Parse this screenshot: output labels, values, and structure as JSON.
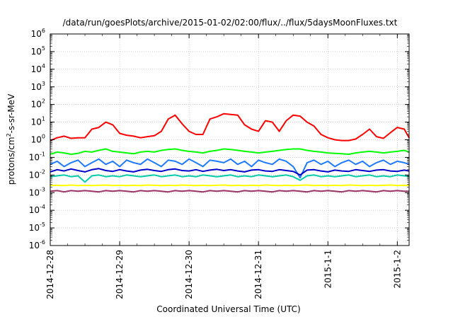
{
  "chart_data": {
    "type": "line",
    "title": "/data/run/goesPlots/archive/2015-01-02/02:00/flux/../flux/5daysMoonFluxes.txt",
    "xlabel": "Coordinated Universal Time (UTC)",
    "ylabel_main": "protons/cm",
    "ylabel_exp": "2",
    "ylabel_rest": "-s-sr-MeV",
    "yscale": "log",
    "ylim": [
      1e-06,
      1000000.0
    ],
    "yticks": [
      {
        "base": "10",
        "exp": "6"
      },
      {
        "base": "10",
        "exp": "5"
      },
      {
        "base": "10",
        "exp": "4"
      },
      {
        "base": "10",
        "exp": "3"
      },
      {
        "base": "10",
        "exp": "2"
      },
      {
        "base": "10",
        "exp": "1"
      },
      {
        "base": "10",
        "exp": "0"
      },
      {
        "base": "10",
        "exp": "-1"
      },
      {
        "base": "10",
        "exp": "-2"
      },
      {
        "base": "10",
        "exp": "-3"
      },
      {
        "base": "10",
        "exp": "-4"
      },
      {
        "base": "10",
        "exp": "-5"
      },
      {
        "base": "10",
        "exp": "-6"
      }
    ],
    "xlim_days": [
      0,
      5.17
    ],
    "xticks": [
      {
        "label": "2014-12-28",
        "day": 0
      },
      {
        "label": "2014-12-29",
        "day": 1
      },
      {
        "label": "2014-12-30",
        "day": 2
      },
      {
        "label": "2014-12-31",
        "day": 3
      },
      {
        "label": "2015-1-1",
        "day": 4
      },
      {
        "label": "2015-1-2",
        "day": 5
      }
    ],
    "grid": true,
    "series": [
      {
        "color": "#ff0000",
        "x": [
          0,
          0.1,
          0.2,
          0.3,
          0.4,
          0.5,
          0.6,
          0.7,
          0.8,
          0.9,
          1.0,
          1.1,
          1.2,
          1.3,
          1.4,
          1.5,
          1.6,
          1.7,
          1.8,
          1.9,
          2.0,
          2.1,
          2.2,
          2.3,
          2.4,
          2.5,
          2.6,
          2.7,
          2.8,
          2.9,
          3.0,
          3.1,
          3.2,
          3.3,
          3.4,
          3.5,
          3.6,
          3.7,
          3.8,
          3.9,
          4.0,
          4.1,
          4.2,
          4.3,
          4.4,
          4.5,
          4.6,
          4.7,
          4.8,
          4.9,
          5.0,
          5.1,
          5.17
        ],
        "y": [
          0.9,
          1.3,
          1.6,
          1.2,
          1.3,
          1.3,
          4,
          5,
          10,
          7,
          2.3,
          1.8,
          1.6,
          1.3,
          1.5,
          1.7,
          3,
          15,
          25,
          8,
          3,
          2,
          2,
          15,
          20,
          30,
          27,
          25,
          7,
          4,
          3,
          12,
          10,
          3,
          12,
          25,
          22,
          10,
          6,
          2,
          1.3,
          1,
          0.9,
          0.9,
          1.1,
          2,
          4,
          1.5,
          1.2,
          2.5,
          5,
          4,
          1.3
        ]
      },
      {
        "color": "#00ff00",
        "x": [
          0,
          0.1,
          0.2,
          0.3,
          0.4,
          0.5,
          0.6,
          0.7,
          0.8,
          0.9,
          1.0,
          1.1,
          1.2,
          1.3,
          1.4,
          1.5,
          1.6,
          1.7,
          1.8,
          1.9,
          2.0,
          2.1,
          2.2,
          2.3,
          2.4,
          2.5,
          2.6,
          2.7,
          2.8,
          2.9,
          3.0,
          3.1,
          3.2,
          3.3,
          3.4,
          3.5,
          3.6,
          3.7,
          3.8,
          3.9,
          4.0,
          4.1,
          4.2,
          4.3,
          4.4,
          4.5,
          4.6,
          4.7,
          4.8,
          4.9,
          5.0,
          5.1,
          5.17
        ],
        "y": [
          0.15,
          0.2,
          0.18,
          0.15,
          0.17,
          0.22,
          0.2,
          0.25,
          0.3,
          0.22,
          0.2,
          0.18,
          0.16,
          0.2,
          0.22,
          0.2,
          0.25,
          0.28,
          0.3,
          0.25,
          0.22,
          0.2,
          0.18,
          0.22,
          0.25,
          0.3,
          0.28,
          0.25,
          0.22,
          0.2,
          0.18,
          0.2,
          0.22,
          0.25,
          0.28,
          0.3,
          0.3,
          0.25,
          0.22,
          0.2,
          0.18,
          0.17,
          0.16,
          0.15,
          0.18,
          0.2,
          0.22,
          0.2,
          0.18,
          0.2,
          0.22,
          0.25,
          0.2
        ]
      },
      {
        "color": "#1e7bff",
        "x": [
          0,
          0.1,
          0.2,
          0.3,
          0.4,
          0.5,
          0.6,
          0.7,
          0.8,
          0.9,
          1.0,
          1.1,
          1.2,
          1.3,
          1.4,
          1.5,
          1.6,
          1.7,
          1.8,
          1.9,
          2.0,
          2.1,
          2.2,
          2.3,
          2.4,
          2.5,
          2.6,
          2.7,
          2.8,
          2.9,
          3.0,
          3.1,
          3.2,
          3.3,
          3.4,
          3.5,
          3.6,
          3.7,
          3.8,
          3.9,
          4.0,
          4.1,
          4.2,
          4.3,
          4.4,
          4.5,
          4.6,
          4.7,
          4.8,
          4.9,
          5.0,
          5.1,
          5.17
        ],
        "y": [
          0.04,
          0.06,
          0.03,
          0.05,
          0.07,
          0.03,
          0.05,
          0.08,
          0.04,
          0.06,
          0.03,
          0.07,
          0.05,
          0.04,
          0.08,
          0.05,
          0.03,
          0.07,
          0.06,
          0.04,
          0.08,
          0.05,
          0.03,
          0.07,
          0.06,
          0.05,
          0.08,
          0.04,
          0.06,
          0.03,
          0.07,
          0.05,
          0.04,
          0.08,
          0.06,
          0.03,
          0.007,
          0.05,
          0.07,
          0.04,
          0.06,
          0.03,
          0.05,
          0.07,
          0.04,
          0.06,
          0.03,
          0.05,
          0.07,
          0.04,
          0.06,
          0.05,
          0.04
        ]
      },
      {
        "color": "#0000cc",
        "x": [
          0,
          0.1,
          0.2,
          0.3,
          0.4,
          0.5,
          0.6,
          0.7,
          0.8,
          0.9,
          1.0,
          1.1,
          1.2,
          1.3,
          1.4,
          1.5,
          1.6,
          1.7,
          1.8,
          1.9,
          2.0,
          2.1,
          2.2,
          2.3,
          2.4,
          2.5,
          2.6,
          2.7,
          2.8,
          2.9,
          3.0,
          3.1,
          3.2,
          3.3,
          3.4,
          3.5,
          3.6,
          3.7,
          3.8,
          3.9,
          4.0,
          4.1,
          4.2,
          4.3,
          4.4,
          4.5,
          4.6,
          4.7,
          4.8,
          4.9,
          5.0,
          5.1,
          5.17
        ],
        "y": [
          0.015,
          0.02,
          0.017,
          0.022,
          0.018,
          0.015,
          0.02,
          0.023,
          0.018,
          0.016,
          0.02,
          0.017,
          0.015,
          0.019,
          0.021,
          0.018,
          0.016,
          0.02,
          0.022,
          0.018,
          0.017,
          0.02,
          0.016,
          0.019,
          0.021,
          0.018,
          0.02,
          0.017,
          0.015,
          0.019,
          0.02,
          0.017,
          0.016,
          0.02,
          0.018,
          0.016,
          0.01,
          0.019,
          0.02,
          0.017,
          0.015,
          0.019,
          0.017,
          0.016,
          0.02,
          0.018,
          0.016,
          0.019,
          0.02,
          0.017,
          0.016,
          0.019,
          0.017
        ]
      },
      {
        "color": "#00ccaa",
        "x": [
          0,
          0.1,
          0.2,
          0.3,
          0.4,
          0.5,
          0.6,
          0.7,
          0.8,
          0.9,
          1.0,
          1.1,
          1.2,
          1.3,
          1.4,
          1.5,
          1.6,
          1.7,
          1.8,
          1.9,
          2.0,
          2.1,
          2.2,
          2.3,
          2.4,
          2.5,
          2.6,
          2.7,
          2.8,
          2.9,
          3.0,
          3.1,
          3.2,
          3.3,
          3.4,
          3.5,
          3.6,
          3.7,
          3.8,
          3.9,
          4.0,
          4.1,
          4.2,
          4.3,
          4.4,
          4.5,
          4.6,
          4.7,
          4.8,
          4.9,
          5.0,
          5.1,
          5.17
        ],
        "y": [
          0.008,
          0.009,
          0.01,
          0.008,
          0.009,
          0.004,
          0.009,
          0.01,
          0.008,
          0.009,
          0.008,
          0.01,
          0.009,
          0.008,
          0.009,
          0.01,
          0.008,
          0.009,
          0.01,
          0.008,
          0.009,
          0.008,
          0.01,
          0.009,
          0.008,
          0.009,
          0.01,
          0.008,
          0.009,
          0.008,
          0.01,
          0.009,
          0.008,
          0.009,
          0.01,
          0.008,
          0.005,
          0.009,
          0.01,
          0.008,
          0.009,
          0.008,
          0.009,
          0.01,
          0.008,
          0.009,
          0.01,
          0.008,
          0.009,
          0.008,
          0.01,
          0.009,
          0.008
        ]
      },
      {
        "color": "#ffff00",
        "x": [
          0,
          0.1,
          0.2,
          0.3,
          0.4,
          0.5,
          0.6,
          0.7,
          0.8,
          0.9,
          1.0,
          1.1,
          1.2,
          1.3,
          1.4,
          1.5,
          1.6,
          1.7,
          1.8,
          1.9,
          2.0,
          2.1,
          2.2,
          2.3,
          2.4,
          2.5,
          2.6,
          2.7,
          2.8,
          2.9,
          3.0,
          3.1,
          3.2,
          3.3,
          3.4,
          3.5,
          3.6,
          3.7,
          3.8,
          3.9,
          4.0,
          4.1,
          4.2,
          4.3,
          4.4,
          4.5,
          4.6,
          4.7,
          4.8,
          4.9,
          5.0,
          5.1,
          5.17
        ],
        "y": [
          0.0025,
          0.0026,
          0.0025,
          0.0027,
          0.0025,
          0.0026,
          0.0025,
          0.0026,
          0.0027,
          0.0025,
          0.0026,
          0.0025,
          0.0026,
          0.0025,
          0.0027,
          0.0026,
          0.0025,
          0.0026,
          0.0025,
          0.0027,
          0.0026,
          0.0025,
          0.0026,
          0.0025,
          0.0026,
          0.0027,
          0.0025,
          0.0026,
          0.0025,
          0.0026,
          0.0025,
          0.0027,
          0.0026,
          0.0025,
          0.0026,
          0.0025,
          0.0026,
          0.0027,
          0.0025,
          0.0026,
          0.0025,
          0.0026,
          0.0025,
          0.0027,
          0.0026,
          0.0025,
          0.0026,
          0.0025,
          0.0026,
          0.0027,
          0.0025,
          0.0026,
          0.0025
        ]
      },
      {
        "color": "#993366",
        "x": [
          0,
          0.1,
          0.2,
          0.3,
          0.4,
          0.5,
          0.6,
          0.7,
          0.8,
          0.9,
          1.0,
          1.1,
          1.2,
          1.3,
          1.4,
          1.5,
          1.6,
          1.7,
          1.8,
          1.9,
          2.0,
          2.1,
          2.2,
          2.3,
          2.4,
          2.5,
          2.6,
          2.7,
          2.8,
          2.9,
          3.0,
          3.1,
          3.2,
          3.3,
          3.4,
          3.5,
          3.6,
          3.7,
          3.8,
          3.9,
          4.0,
          4.1,
          4.2,
          4.3,
          4.4,
          4.5,
          4.6,
          4.7,
          4.8,
          4.9,
          5.0,
          5.1,
          5.17
        ],
        "y": [
          0.0012,
          0.0013,
          0.0011,
          0.0013,
          0.0012,
          0.0013,
          0.0012,
          0.0011,
          0.0013,
          0.0012,
          0.0013,
          0.0012,
          0.0011,
          0.0013,
          0.0012,
          0.0013,
          0.0012,
          0.0011,
          0.0013,
          0.0012,
          0.0013,
          0.0012,
          0.0011,
          0.0013,
          0.0012,
          0.0013,
          0.0012,
          0.0011,
          0.0013,
          0.0012,
          0.0013,
          0.0012,
          0.0011,
          0.0013,
          0.0012,
          0.0013,
          0.0012,
          0.0011,
          0.0013,
          0.0012,
          0.0013,
          0.0012,
          0.0011,
          0.0013,
          0.0012,
          0.0013,
          0.0012,
          0.0011,
          0.0013,
          0.0012,
          0.0013,
          0.0012,
          0.0012
        ]
      }
    ]
  }
}
